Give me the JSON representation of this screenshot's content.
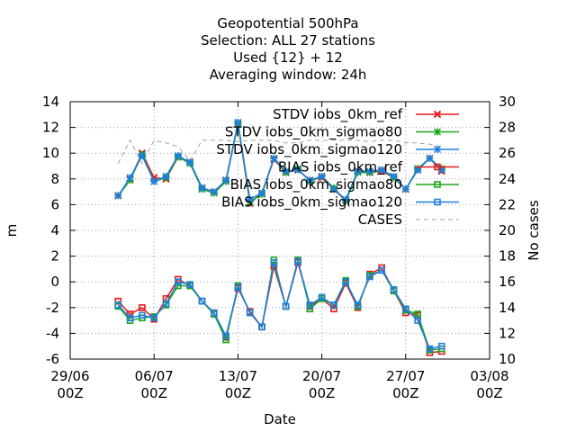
{
  "chart_data": {
    "type": "line",
    "title_lines": [
      "Geopotential 500hPa",
      "Selection: ALL     27 stations",
      "Used {12} + 12",
      "Averaging window: 24h"
    ],
    "xlabel": "Date",
    "ylabel": "m",
    "y2label": "No cases",
    "x_ticks": [
      {
        "top": "29/06",
        "bottom": "00Z"
      },
      {
        "top": "06/07",
        "bottom": "00Z"
      },
      {
        "top": "13/07",
        "bottom": "00Z"
      },
      {
        "top": "20/07",
        "bottom": "00Z"
      },
      {
        "top": "27/07",
        "bottom": "00Z"
      },
      {
        "top": "03/08",
        "bottom": "00Z"
      }
    ],
    "xlim": [
      0,
      35
    ],
    "ylim": [
      -6,
      14
    ],
    "y_ticks": [
      -6,
      -4,
      -2,
      0,
      2,
      4,
      6,
      8,
      10,
      12,
      14
    ],
    "y2lim": [
      10,
      30
    ],
    "y2_ticks": [
      10,
      12,
      14,
      16,
      18,
      20,
      22,
      24,
      26,
      28,
      30
    ],
    "grid": true,
    "legend_position": "top-right",
    "colors": {
      "ref": "#e41a1c",
      "sigmao80": "#1aa61a",
      "sigmao120": "#1f7fe0",
      "cases": "#a0a0a0"
    },
    "x": [
      4,
      5,
      6,
      7,
      8,
      9,
      10,
      11,
      12,
      13,
      14,
      15,
      16,
      17,
      18,
      19,
      20,
      21,
      22,
      23,
      24,
      25,
      26,
      27,
      28,
      29,
      30,
      31,
      32
    ],
    "series": [
      {
        "name": "STDV iobs_0km_ref",
        "kind": "stdv",
        "axis": "y",
        "color_key": "ref",
        "values": [
          6.7,
          8.0,
          10.0,
          8.1,
          8.0,
          9.7,
          9.3,
          7.3,
          7.0,
          7.9,
          12.3,
          6.1,
          6.9,
          9.5,
          8.5,
          8.7,
          7.9,
          8.1,
          7.2,
          6.3,
          8.6,
          8.5,
          8.6,
          8.1,
          7.2,
          8.7,
          9.6,
          8.6,
          null
        ]
      },
      {
        "name": "STDV iobs_0km_sigmao80",
        "kind": "stdv",
        "axis": "y",
        "color_key": "sigmao80",
        "values": [
          6.7,
          7.9,
          9.9,
          7.8,
          8.1,
          9.7,
          9.2,
          7.2,
          6.9,
          7.8,
          12.3,
          6.2,
          6.8,
          9.6,
          8.5,
          8.8,
          7.8,
          8.2,
          7.3,
          6.3,
          8.5,
          8.5,
          8.7,
          8.1,
          7.2,
          8.8,
          9.6,
          8.8,
          null
        ]
      },
      {
        "name": "STDV iobs_0km_sigmao120",
        "kind": "stdv",
        "axis": "y",
        "color_key": "sigmao120",
        "values": [
          6.7,
          8.1,
          9.8,
          7.8,
          8.2,
          9.8,
          9.3,
          7.3,
          7.0,
          7.9,
          12.4,
          6.4,
          6.9,
          9.6,
          8.6,
          8.7,
          7.9,
          8.2,
          7.2,
          6.4,
          8.6,
          8.6,
          8.7,
          8.2,
          7.2,
          8.7,
          9.6,
          8.7,
          null
        ]
      },
      {
        "name": "BIAS iobs_0km_ref",
        "kind": "bias",
        "axis": "y",
        "color_key": "ref",
        "values": [
          -1.5,
          -2.5,
          -2.0,
          -2.9,
          -1.3,
          0.2,
          -0.3,
          -1.5,
          -2.5,
          -4.3,
          -0.5,
          -2.3,
          -3.5,
          1.2,
          -1.9,
          1.5,
          -1.9,
          -1.3,
          -2.1,
          -0.1,
          -2.0,
          0.6,
          1.1,
          -0.7,
          -2.4,
          -2.6,
          -5.5,
          -5.4,
          null
        ]
      },
      {
        "name": "BIAS iobs_0km_sigmao80",
        "kind": "bias",
        "axis": "y",
        "color_key": "sigmao80",
        "values": [
          -1.9,
          -3.0,
          -2.8,
          -2.7,
          -1.8,
          -0.3,
          -0.3,
          -1.5,
          -2.5,
          -4.5,
          -0.3,
          -2.4,
          -3.5,
          1.7,
          -1.9,
          1.7,
          -2.1,
          -1.3,
          -1.8,
          0.1,
          -1.9,
          0.5,
          0.9,
          -0.7,
          -2.2,
          -2.5,
          -5.3,
          -5.2,
          null
        ]
      },
      {
        "name": "BIAS iobs_0km_sigmao120",
        "kind": "bias",
        "axis": "y",
        "color_key": "sigmao120",
        "values": [
          -1.8,
          -2.8,
          -2.6,
          -2.8,
          -1.7,
          0.0,
          -0.2,
          -1.5,
          -2.4,
          -4.2,
          -0.4,
          -2.4,
          -3.5,
          1.5,
          -1.9,
          1.6,
          -1.8,
          -1.2,
          -1.8,
          0.0,
          -1.8,
          0.4,
          0.9,
          -0.6,
          -2.1,
          -3.0,
          -5.2,
          -5.0,
          null
        ]
      },
      {
        "name": "CASES",
        "kind": "cases",
        "axis": "y2",
        "color_key": "cases",
        "values": [
          25.2,
          27.0,
          25.2,
          27.0,
          26.8,
          26.5,
          25.4,
          27.0,
          27.0,
          27.0,
          26.9,
          27.0,
          27.0,
          27.0,
          26.8,
          26.8,
          27.0,
          27.0,
          27.0,
          27.0,
          27.0,
          26.9,
          27.0,
          27.0,
          26.8,
          26.8,
          26.7,
          26.5,
          null
        ]
      }
    ]
  }
}
